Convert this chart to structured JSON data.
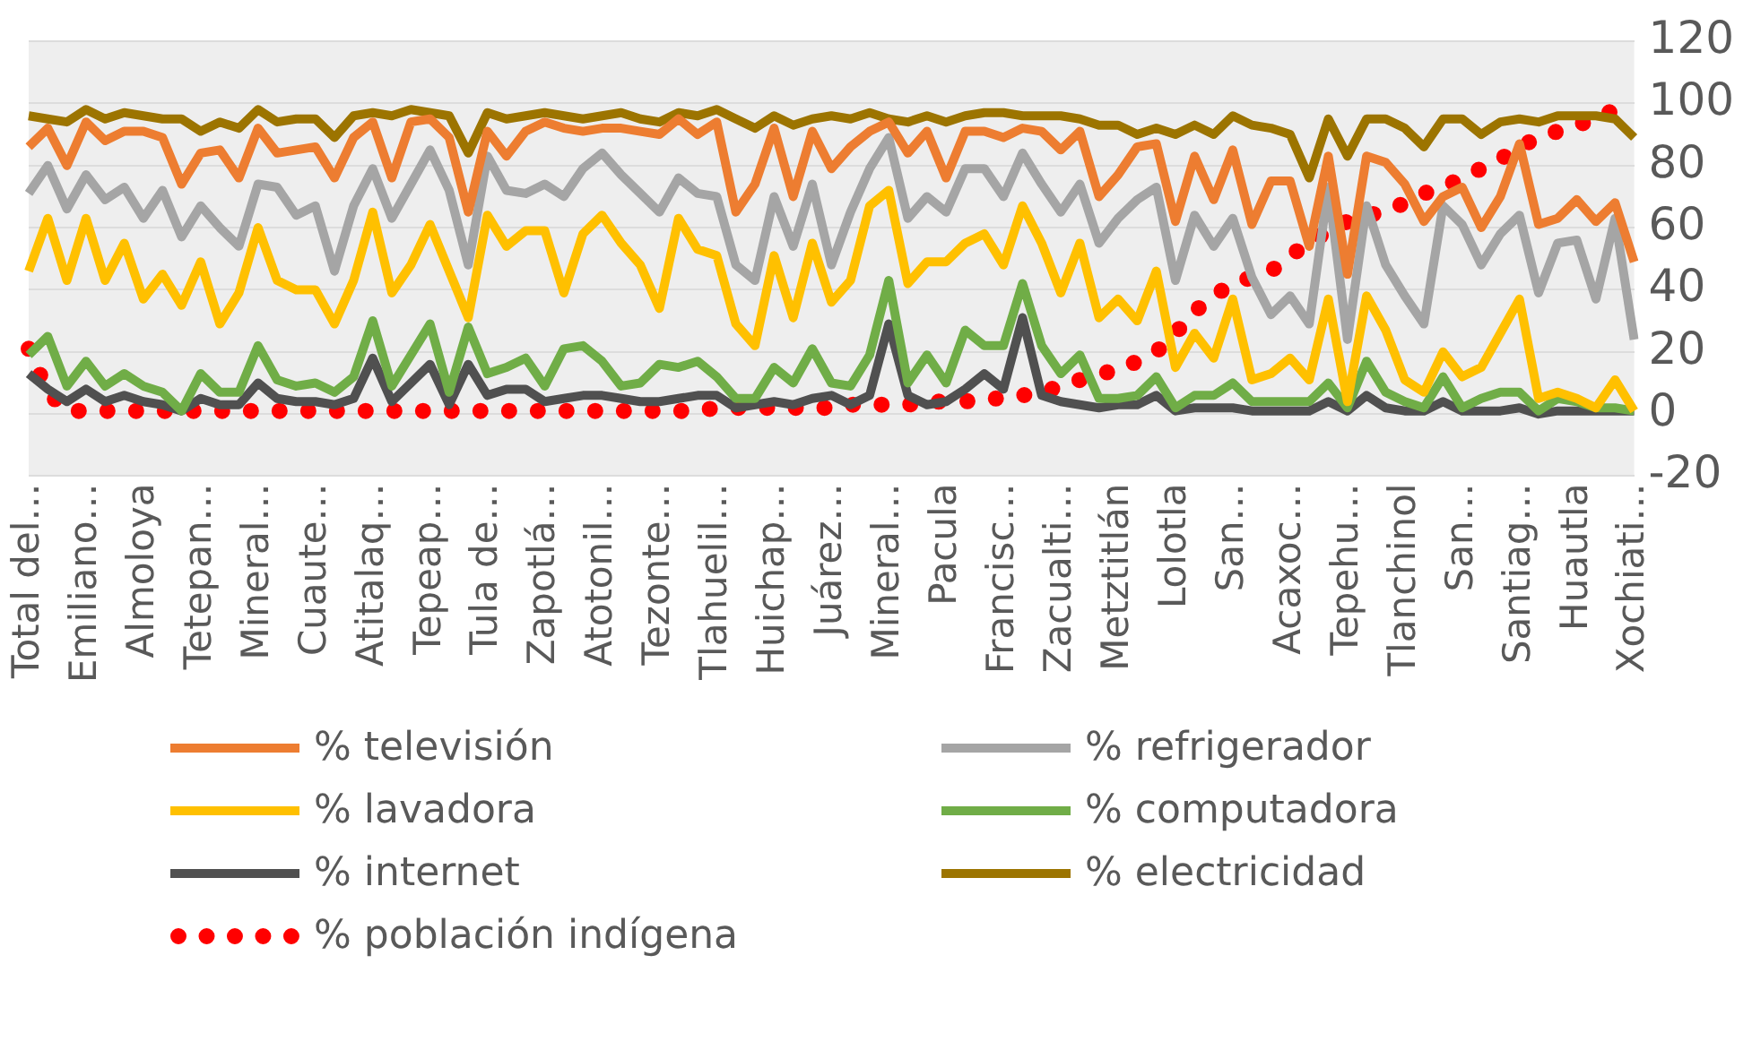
{
  "chart_data": {
    "type": "line",
    "categories": [
      "Total del…",
      null,
      null,
      "Emiliano…",
      null,
      null,
      "Almoloya",
      null,
      null,
      "Tetepan…",
      null,
      null,
      "Mineral…",
      null,
      null,
      "Cuaute…",
      null,
      null,
      "Atitalaq…",
      null,
      null,
      "Tepeap…",
      null,
      null,
      "Tula de…",
      null,
      null,
      "Zapotlá…",
      null,
      null,
      "Atotonil…",
      null,
      null,
      "Tezonte…",
      null,
      null,
      "Tlahuelil…",
      null,
      null,
      "Huichap…",
      null,
      null,
      "Juárez…",
      null,
      null,
      "Mineral…",
      null,
      null,
      "Pacula",
      null,
      null,
      "Francisc…",
      null,
      null,
      "Zacualti…",
      null,
      null,
      "Metztitlán",
      null,
      null,
      "Lolotla",
      null,
      null,
      "San…",
      null,
      null,
      "Acaxoc…",
      null,
      null,
      "Tepehu…",
      null,
      null,
      "Tlanchinol",
      null,
      null,
      "San…",
      null,
      null,
      "Santiag…",
      null,
      null,
      "Huautla",
      null,
      null,
      "Xochiati…"
    ],
    "series": [
      {
        "name": "% televisión",
        "color": "#ed7d31",
        "values": [
          86,
          92,
          80,
          94,
          88,
          91,
          91,
          89,
          74,
          84,
          85,
          76,
          92,
          84,
          85,
          86,
          76,
          89,
          94,
          76,
          94,
          95,
          89,
          65,
          91,
          83,
          91,
          94,
          92,
          91,
          92,
          92,
          91,
          90,
          95,
          90,
          94,
          65,
          74,
          92,
          70,
          91,
          79,
          86,
          91,
          94,
          84,
          91,
          76,
          91,
          91,
          89,
          92,
          91,
          85,
          91,
          70,
          77,
          86,
          87,
          62,
          83,
          69,
          85,
          61,
          75,
          75,
          54,
          83,
          45,
          83,
          81,
          74,
          62,
          70,
          73,
          60,
          70,
          87,
          61,
          63,
          69,
          62,
          68,
          49
        ]
      },
      {
        "name": "% refrigerador",
        "color": "#a5a5a5",
        "values": [
          71,
          80,
          66,
          77,
          69,
          73,
          63,
          72,
          57,
          67,
          60,
          54,
          74,
          73,
          64,
          67,
          46,
          67,
          79,
          63,
          74,
          85,
          72,
          48,
          83,
          72,
          71,
          74,
          70,
          79,
          84,
          77,
          71,
          65,
          76,
          71,
          70,
          48,
          43,
          70,
          54,
          74,
          48,
          65,
          79,
          89,
          63,
          70,
          65,
          79,
          79,
          70,
          84,
          74,
          65,
          74,
          55,
          63,
          69,
          73,
          43,
          64,
          54,
          63,
          44,
          32,
          38,
          29,
          73,
          24,
          67,
          48,
          38,
          29,
          67,
          61,
          48,
          58,
          64,
          39,
          55,
          56,
          37,
          63,
          24
        ]
      },
      {
        "name": "% lavadora",
        "color": "#ffc000",
        "values": [
          46,
          63,
          43,
          63,
          43,
          55,
          37,
          45,
          35,
          49,
          29,
          39,
          60,
          43,
          40,
          40,
          29,
          43,
          65,
          39,
          48,
          61,
          46,
          31,
          64,
          54,
          59,
          59,
          39,
          58,
          64,
          55,
          48,
          34,
          63,
          53,
          51,
          29,
          22,
          51,
          31,
          55,
          36,
          43,
          67,
          72,
          42,
          49,
          49,
          55,
          58,
          48,
          67,
          55,
          39,
          55,
          31,
          37,
          30,
          46,
          15,
          26,
          18,
          37,
          11,
          13,
          18,
          11,
          37,
          4,
          38,
          27,
          11,
          7,
          20,
          12,
          15,
          26,
          37,
          5,
          7,
          5,
          2,
          11,
          1
        ]
      },
      {
        "name": "% computadora",
        "color": "#70ad47",
        "values": [
          19,
          25,
          9,
          17,
          9,
          13,
          9,
          7,
          1,
          13,
          7,
          7,
          22,
          11,
          9,
          10,
          7,
          12,
          30,
          9,
          19,
          29,
          7,
          28,
          13,
          15,
          18,
          9,
          21,
          22,
          17,
          9,
          10,
          16,
          15,
          17,
          12,
          5,
          5,
          15,
          10,
          21,
          10,
          9,
          19,
          43,
          10,
          19,
          10,
          27,
          22,
          22,
          42,
          22,
          13,
          19,
          5,
          5,
          6,
          12,
          2,
          6,
          6,
          10,
          4,
          4,
          4,
          4,
          10,
          2,
          17,
          7,
          4,
          2,
          12,
          2,
          5,
          7,
          7,
          1,
          5,
          4,
          2,
          2,
          1
        ]
      },
      {
        "name": "% internet",
        "color": "#505050",
        "values": [
          13,
          8,
          4,
          8,
          4,
          6,
          4,
          3,
          1,
          5,
          3,
          3,
          10,
          5,
          4,
          4,
          3,
          5,
          18,
          4,
          10,
          16,
          3,
          16,
          6,
          8,
          8,
          4,
          5,
          6,
          6,
          5,
          4,
          4,
          5,
          6,
          6,
          2,
          3,
          4,
          3,
          5,
          6,
          3,
          6,
          29,
          6,
          3,
          4,
          8,
          13,
          8,
          31,
          6,
          4,
          3,
          2,
          3,
          3,
          6,
          1,
          2,
          2,
          2,
          1,
          1,
          1,
          1,
          4,
          1,
          6,
          2,
          1,
          1,
          4,
          1,
          1,
          1,
          2,
          0,
          1,
          1,
          1,
          1,
          1
        ]
      },
      {
        "name": "% electricidad",
        "color": "#9c7400",
        "values": [
          96,
          95,
          94,
          98,
          95,
          97,
          96,
          95,
          95,
          91,
          94,
          92,
          98,
          94,
          95,
          95,
          89,
          96,
          97,
          96,
          98,
          97,
          96,
          84,
          97,
          95,
          96,
          97,
          96,
          95,
          96,
          97,
          95,
          94,
          97,
          96,
          98,
          95,
          92,
          96,
          93,
          95,
          96,
          95,
          97,
          95,
          94,
          96,
          94,
          96,
          97,
          97,
          96,
          96,
          96,
          95,
          93,
          93,
          90,
          92,
          90,
          93,
          90,
          96,
          93,
          92,
          90,
          76,
          95,
          83,
          95,
          95,
          92,
          86,
          95,
          95,
          90,
          94,
          95,
          94,
          96,
          96,
          96,
          95,
          89
        ]
      },
      {
        "name": "% población indígena",
        "color": "#ff0000",
        "line_style": "dotted",
        "values": [
          21,
          7,
          1,
          1,
          1,
          1,
          1,
          1,
          1,
          1,
          1,
          1,
          1,
          1,
          1,
          1,
          1,
          1,
          1,
          1,
          1,
          1,
          1,
          1,
          1,
          1,
          1,
          1,
          1,
          1,
          1,
          1,
          1,
          1,
          1,
          1,
          2,
          2,
          2,
          2,
          2,
          2,
          2,
          3,
          3,
          3,
          3,
          4,
          4,
          4,
          5,
          5,
          6,
          7,
          9,
          11,
          13,
          14,
          17,
          20,
          26,
          33,
          38,
          42,
          44,
          46,
          51,
          55,
          59,
          62,
          64,
          65,
          68,
          71,
          73,
          76,
          79,
          82,
          86,
          89,
          91,
          93,
          95,
          98,
          100
        ]
      }
    ],
    "ylim": [
      -20,
      120
    ],
    "yticks": [
      -20,
      0,
      20,
      40,
      60,
      80,
      100,
      120
    ],
    "grid": "y",
    "legend": "bottom"
  }
}
